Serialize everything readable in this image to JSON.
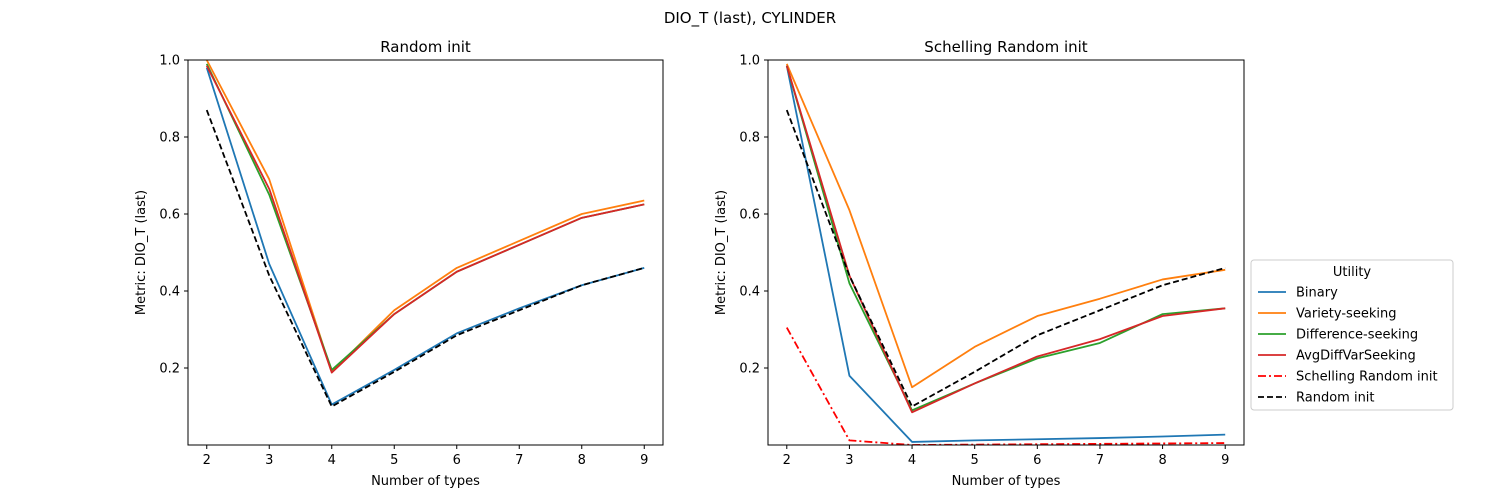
{
  "figure": {
    "suptitle": "DIO_T (last), CYLINDER"
  },
  "legend": {
    "title": "Utility",
    "placement": "center-right outside",
    "entries": [
      {
        "label": "Binary",
        "color": "#1f77b4",
        "dash": "solid"
      },
      {
        "label": "Variety-seeking",
        "color": "#ff7f0e",
        "dash": "solid"
      },
      {
        "label": "Difference-seeking",
        "color": "#2ca02c",
        "dash": "solid"
      },
      {
        "label": "AvgDiffVarSeeking",
        "color": "#d62728",
        "dash": "solid"
      },
      {
        "label": "Schelling Random init",
        "color": "#ff0000",
        "dash": "dashdot"
      },
      {
        "label": "Random init",
        "color": "#000000",
        "dash": "dashed"
      }
    ]
  },
  "chart_data": [
    {
      "type": "line",
      "title": "Random init",
      "xlabel": "Number of types",
      "ylabel": "Metric: DIO_T (last)",
      "xlim": [
        1.7,
        9.3
      ],
      "ylim": [
        0,
        1.0
      ],
      "xticks": [
        2,
        3,
        4,
        5,
        6,
        7,
        8,
        9
      ],
      "yticks": [
        0.2,
        0.4,
        0.6,
        0.8,
        1.0
      ],
      "ytick_labels": [
        "0.2",
        "0.4",
        "0.6",
        "0.8",
        "1.0"
      ],
      "grid": false,
      "x": [
        2,
        3,
        4,
        5,
        6,
        7,
        8,
        9
      ],
      "series": [
        {
          "name": "Binary",
          "color": "#1f77b4",
          "dash": "solid",
          "values": [
            0.98,
            0.47,
            0.105,
            0.195,
            0.29,
            0.355,
            0.415,
            0.46
          ]
        },
        {
          "name": "Variety-seeking",
          "color": "#ff7f0e",
          "dash": "solid",
          "values": [
            1.0,
            0.69,
            0.19,
            0.35,
            0.46,
            0.53,
            0.6,
            0.635
          ]
        },
        {
          "name": "Difference-seeking",
          "color": "#2ca02c",
          "dash": "solid",
          "values": [
            0.99,
            0.65,
            0.195,
            0.34,
            0.45,
            0.52,
            0.59,
            0.625
          ]
        },
        {
          "name": "AvgDiffVarSeeking",
          "color": "#d62728",
          "dash": "solid",
          "values": [
            0.985,
            0.665,
            0.188,
            0.34,
            0.45,
            0.52,
            0.59,
            0.625
          ]
        },
        {
          "name": "Random init",
          "color": "#000000",
          "dash": "dashed",
          "values": [
            0.87,
            0.44,
            0.1,
            0.19,
            0.285,
            0.35,
            0.415,
            0.46
          ]
        }
      ]
    },
    {
      "type": "line",
      "title": "Schelling Random init",
      "xlabel": "Number of types",
      "ylabel": "Metric: DIO_T (last)",
      "xlim": [
        1.7,
        9.3
      ],
      "ylim": [
        0,
        1.0
      ],
      "xticks": [
        2,
        3,
        4,
        5,
        6,
        7,
        8,
        9
      ],
      "yticks": [
        0.2,
        0.4,
        0.6,
        0.8,
        1.0
      ],
      "ytick_labels": [
        "0.2",
        "0.4",
        "0.6",
        "0.8",
        "1.0"
      ],
      "grid": false,
      "x": [
        2,
        3,
        4,
        5,
        6,
        7,
        8,
        9
      ],
      "series": [
        {
          "name": "Binary",
          "color": "#1f77b4",
          "dash": "solid",
          "values": [
            0.985,
            0.18,
            0.008,
            0.012,
            0.015,
            0.018,
            0.022,
            0.027
          ]
        },
        {
          "name": "Variety-seeking",
          "color": "#ff7f0e",
          "dash": "solid",
          "values": [
            0.99,
            0.61,
            0.15,
            0.255,
            0.335,
            0.38,
            0.43,
            0.455
          ]
        },
        {
          "name": "Difference-seeking",
          "color": "#2ca02c",
          "dash": "solid",
          "values": [
            0.985,
            0.42,
            0.09,
            0.16,
            0.225,
            0.265,
            0.34,
            0.355
          ]
        },
        {
          "name": "AvgDiffVarSeeking",
          "color": "#d62728",
          "dash": "solid",
          "values": [
            0.985,
            0.44,
            0.085,
            0.16,
            0.23,
            0.275,
            0.335,
            0.355
          ]
        },
        {
          "name": "Schelling Random init",
          "color": "#ff0000",
          "dash": "dashdot",
          "values": [
            0.305,
            0.012,
            0.0,
            0.001,
            0.002,
            0.003,
            0.004,
            0.005
          ]
        },
        {
          "name": "Random init",
          "color": "#000000",
          "dash": "dashed",
          "values": [
            0.87,
            0.44,
            0.1,
            0.19,
            0.285,
            0.35,
            0.415,
            0.46
          ]
        }
      ]
    }
  ]
}
